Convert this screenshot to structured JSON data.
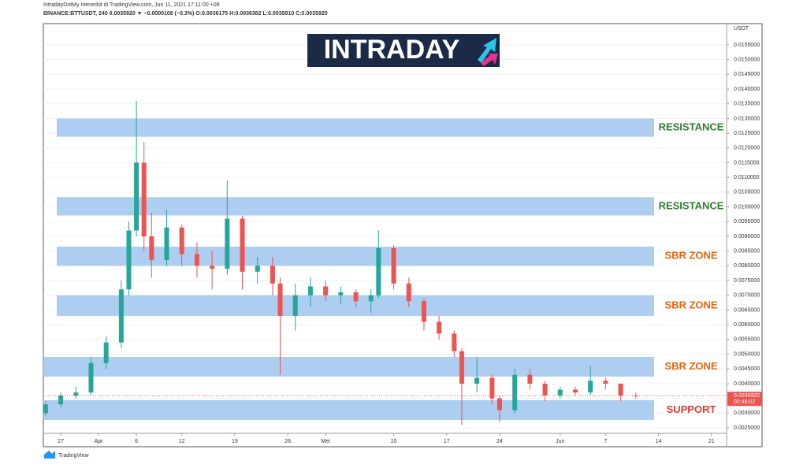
{
  "header": {
    "line1": "IntradayDotMy menerbit di TradingView.com, Jun 11, 2021 17:11:00 +08",
    "line2": "BINANCE:BTTUSDT, 240 0.0035920 ▼ −0.0000108 (−0.3%) O:0.0036175 H:0.0036382 L:0.0035810 C:0.0035920",
    "logo": "INTRADAY",
    "footer": "TradingView"
  },
  "chart_data": {
    "type": "candlestick",
    "y_unit": "USDT",
    "xlim": [
      83.7,
      174
    ],
    "ylim": [
      0.00186,
      0.01622
    ],
    "xticks": [
      {
        "value": 86,
        "label": "27"
      },
      {
        "value": 91,
        "label": "Apr"
      },
      {
        "value": 96,
        "label": "6"
      },
      {
        "value": 102,
        "label": "12"
      },
      {
        "value": 109,
        "label": "19"
      },
      {
        "value": 116,
        "label": "26"
      },
      {
        "value": 121,
        "label": "Mei"
      },
      {
        "value": 130,
        "label": "10"
      },
      {
        "value": 137,
        "label": "17"
      },
      {
        "value": 144,
        "label": "24"
      },
      {
        "value": 152,
        "label": "Jun"
      },
      {
        "value": 158,
        "label": "7"
      },
      {
        "value": 165,
        "label": "14"
      },
      {
        "value": 172,
        "label": "21"
      }
    ],
    "yticks": [
      {
        "value": 0.0025,
        "label": "0.0025000"
      },
      {
        "value": 0.003,
        "label": "0.0030000"
      },
      {
        "value": 0.0035,
        "label": "0.0035000"
      },
      {
        "value": 0.004,
        "label": "0.0040000"
      },
      {
        "value": 0.0045,
        "label": "0.0045000"
      },
      {
        "value": 0.005,
        "label": "0.0050000"
      },
      {
        "value": 0.0055,
        "label": "0.0055000"
      },
      {
        "value": 0.006,
        "label": "0.0060000"
      },
      {
        "value": 0.0065,
        "label": "0.0065000"
      },
      {
        "value": 0.007,
        "label": "0.0070000"
      },
      {
        "value": 0.0075,
        "label": "0.0075000"
      },
      {
        "value": 0.008,
        "label": "0.0080000"
      },
      {
        "value": 0.0085,
        "label": "0.0085000"
      },
      {
        "value": 0.009,
        "label": "0.0090000"
      },
      {
        "value": 0.0095,
        "label": "0.0095000"
      },
      {
        "value": 0.01,
        "label": "0.0100000"
      },
      {
        "value": 0.0105,
        "label": "0.0105000"
      },
      {
        "value": 0.011,
        "label": "0.0110000"
      },
      {
        "value": 0.0115,
        "label": "0.0115000"
      },
      {
        "value": 0.012,
        "label": "0.0120000"
      },
      {
        "value": 0.0125,
        "label": "0.0125000"
      },
      {
        "value": 0.013,
        "label": "0.0130000"
      },
      {
        "value": 0.0135,
        "label": "0.0135000"
      },
      {
        "value": 0.014,
        "label": "0.0140000"
      },
      {
        "value": 0.0145,
        "label": "0.0145000"
      },
      {
        "value": 0.015,
        "label": "0.0150000"
      },
      {
        "value": 0.0155,
        "label": "0.0155000"
      }
    ],
    "up_color": "#26a69a",
    "down_color": "#ef5350",
    "x": [
      84,
      86,
      88,
      90,
      92,
      94,
      95,
      96,
      97,
      98,
      100,
      102,
      104,
      106,
      108,
      110,
      112,
      114,
      115,
      117,
      119,
      121,
      123,
      125,
      127,
      128,
      130,
      132,
      134,
      136,
      138,
      139,
      141,
      143,
      144,
      146,
      148,
      150,
      152,
      154,
      156,
      158,
      160,
      162
    ],
    "open": [
      0.003,
      0.0033,
      0.0036,
      0.0037,
      0.0047,
      0.0054,
      0.0072,
      0.0092,
      0.0115,
      0.009,
      0.0082,
      0.0093,
      0.0084,
      0.008,
      0.0079,
      0.0096,
      0.0078,
      0.008,
      0.0074,
      0.0063,
      0.007,
      0.0073,
      0.007,
      0.0071,
      0.0068,
      0.007,
      0.0086,
      0.0074,
      0.0068,
      0.0061,
      0.0057,
      0.0051,
      0.004,
      0.0042,
      0.0035,
      0.0031,
      0.0043,
      0.004,
      0.0036,
      0.0038,
      0.0037,
      0.0041,
      0.004,
      0.0036
    ],
    "high": [
      0.0034,
      0.0037,
      0.0039,
      0.0049,
      0.0056,
      0.0075,
      0.0095,
      0.0136,
      0.0122,
      0.0098,
      0.0099,
      0.0094,
      0.0088,
      0.0085,
      0.0109,
      0.0097,
      0.0083,
      0.0083,
      0.0076,
      0.0074,
      0.0076,
      0.0075,
      0.0073,
      0.0072,
      0.0072,
      0.0092,
      0.0087,
      0.0076,
      0.0069,
      0.0063,
      0.0058,
      0.0052,
      0.0049,
      0.0043,
      0.0036,
      0.0045,
      0.0045,
      0.0041,
      0.0039,
      0.0039,
      0.0046,
      0.0042,
      0.004,
      0.0037
    ],
    "low": [
      0.0029,
      0.0032,
      0.0035,
      0.0036,
      0.0045,
      0.0052,
      0.007,
      0.009,
      0.0085,
      0.0076,
      0.008,
      0.008,
      0.0076,
      0.0072,
      0.0077,
      0.0072,
      0.0074,
      0.007,
      0.0043,
      0.0058,
      0.0066,
      0.0068,
      0.0067,
      0.0066,
      0.0064,
      0.0069,
      0.0072,
      0.0066,
      0.0058,
      0.0055,
      0.0049,
      0.0026,
      0.0037,
      0.0033,
      0.0027,
      0.003,
      0.0038,
      0.0034,
      0.0035,
      0.0036,
      0.0036,
      0.0038,
      0.0034,
      0.0035
    ],
    "close": [
      0.0033,
      0.0036,
      0.0037,
      0.0047,
      0.0054,
      0.0072,
      0.0092,
      0.0115,
      0.009,
      0.0082,
      0.0093,
      0.0084,
      0.008,
      0.0079,
      0.0096,
      0.0078,
      0.008,
      0.0074,
      0.0063,
      0.007,
      0.0073,
      0.007,
      0.0071,
      0.0068,
      0.007,
      0.0086,
      0.0074,
      0.0068,
      0.0061,
      0.0057,
      0.0051,
      0.004,
      0.0042,
      0.0035,
      0.0031,
      0.0043,
      0.004,
      0.0036,
      0.0038,
      0.0037,
      0.0041,
      0.004,
      0.0036,
      0.003592
    ],
    "last_price": {
      "value": 0.003592,
      "label": "0.0035920"
    },
    "countdown": "02:49:02",
    "zones": [
      {
        "label": "RESISTANCE",
        "top": 0.013,
        "bottom": 0.01238,
        "color": "#2e7d32"
      },
      {
        "label": "RESISTANCE",
        "top": 0.01033,
        "bottom": 0.00971,
        "color": "#2e7d32"
      },
      {
        "label": "SBR ZONE",
        "top": 0.00865,
        "bottom": 0.008,
        "color": "#e8650f"
      },
      {
        "label": "SBR ZONE",
        "top": 0.007,
        "bottom": 0.0063,
        "color": "#e8650f"
      },
      {
        "label": "SBR ZONE",
        "top": 0.00491,
        "bottom": 0.00424,
        "color": "#e8650f"
      },
      {
        "label": "SUPPORT",
        "top": 0.00344,
        "bottom": 0.00277,
        "color": "#e53935"
      }
    ]
  }
}
